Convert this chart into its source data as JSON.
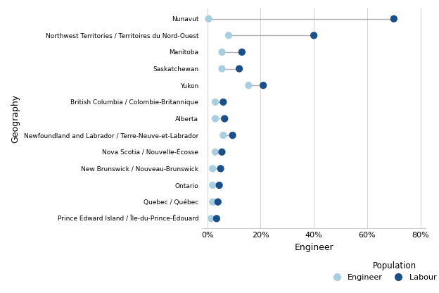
{
  "categories": [
    "Nunavut",
    "Northwest Territories / Territoires du Nord-Ouest",
    "Manitoba",
    "Saskatchewan",
    "Yukon",
    "British Columbia / Colombie-Britannique",
    "Alberta",
    "Newfoundland and Labrador / Terre-Neuve-et-Labrador",
    "Nova Scotia / Nouvelle-Écosse",
    "New Brunswick / Nouveau-Brunswick",
    "Ontario",
    "Quebec / Québec",
    "Prince Edward Island / Île-du-Prince-Édouard"
  ],
  "engineer_pct": [
    0.5,
    8.0,
    5.5,
    5.5,
    15.5,
    3.0,
    3.0,
    6.0,
    3.0,
    2.0,
    2.0,
    2.0,
    1.5
  ],
  "labour_force_pct": [
    70.0,
    40.0,
    13.0,
    12.0,
    21.0,
    6.0,
    6.5,
    9.5,
    5.5,
    5.0,
    4.5,
    4.0,
    3.5
  ],
  "engineer_color": "#a8cfe0",
  "labour_force_color": "#1b4f8a",
  "line_color": "#b0b0b0",
  "xlabel": "Engineer",
  "ylabel": "Geography",
  "xlim": [
    -2,
    82
  ],
  "xticks": [
    0,
    20,
    40,
    60,
    80
  ],
  "xticklabels": [
    "0%",
    "20%",
    "40%",
    "60%",
    "80%"
  ],
  "dot_size": 55,
  "background_color": "#ffffff",
  "grid_color": "#d5d5d5",
  "legend_title": "Population",
  "legend_engineer_label": "Engineer",
  "legend_labour_label": "Labour Force"
}
